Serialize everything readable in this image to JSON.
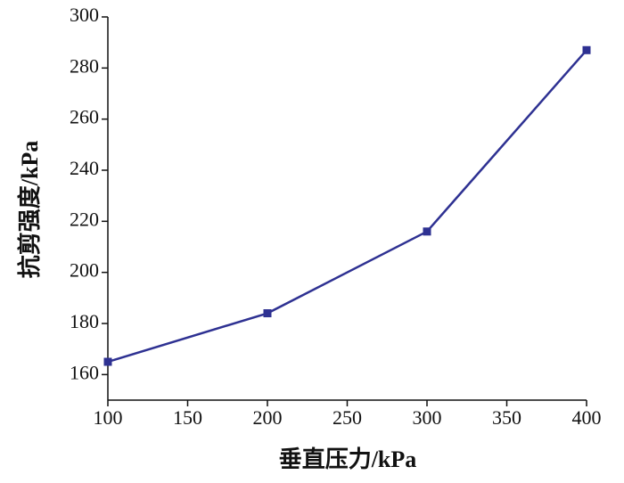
{
  "chart_data": {
    "type": "line",
    "x_label": "垂直压力/kPa",
    "y_label": "抗剪强度/kPa",
    "x": [
      100,
      200,
      300,
      400
    ],
    "series": [
      {
        "name": "抗剪强度",
        "color": "#2e3192",
        "values": [
          165,
          184,
          216,
          287
        ]
      }
    ],
    "xlim": [
      100,
      400
    ],
    "xticks": [
      100,
      150,
      200,
      250,
      300,
      350,
      400
    ],
    "ylim": [
      150,
      300
    ],
    "yticks": [
      160,
      180,
      200,
      220,
      240,
      260,
      280,
      300
    ],
    "grid": false
  }
}
